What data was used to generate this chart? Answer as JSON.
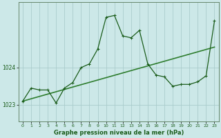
{
  "background_color": "#cce8e8",
  "grid_color": "#aacccc",
  "line_color_dark": "#1a5c1a",
  "line_color_light": "#2e7d2e",
  "xlabel": "Graphe pression niveau de la mer (hPa)",
  "xlabel_fontsize": 6.0,
  "ylim": [
    1022.55,
    1025.75
  ],
  "xlim": [
    -0.5,
    23.5
  ],
  "yticks": [
    1023,
    1024
  ],
  "xticks": [
    0,
    1,
    2,
    3,
    4,
    5,
    6,
    7,
    8,
    9,
    10,
    11,
    12,
    13,
    14,
    15,
    16,
    17,
    18,
    19,
    20,
    21,
    22,
    23
  ],
  "series1_x": [
    0,
    1,
    2,
    3,
    4,
    5,
    6,
    7,
    8,
    9,
    10,
    11,
    12,
    13,
    14,
    15,
    16,
    17,
    18,
    19,
    20,
    21,
    22,
    23
  ],
  "series1_y": [
    1023.1,
    1023.45,
    1023.4,
    1023.4,
    1023.05,
    1023.45,
    1023.6,
    1024.0,
    1024.1,
    1024.5,
    1025.35,
    1025.4,
    1024.85,
    1024.8,
    1025.0,
    1024.1,
    1023.8,
    1023.75,
    1023.5,
    1023.55,
    1023.55,
    1023.62,
    1023.78,
    1025.25
  ],
  "series2_x": [
    0,
    23
  ],
  "series2_y": [
    1023.1,
    1024.55
  ]
}
